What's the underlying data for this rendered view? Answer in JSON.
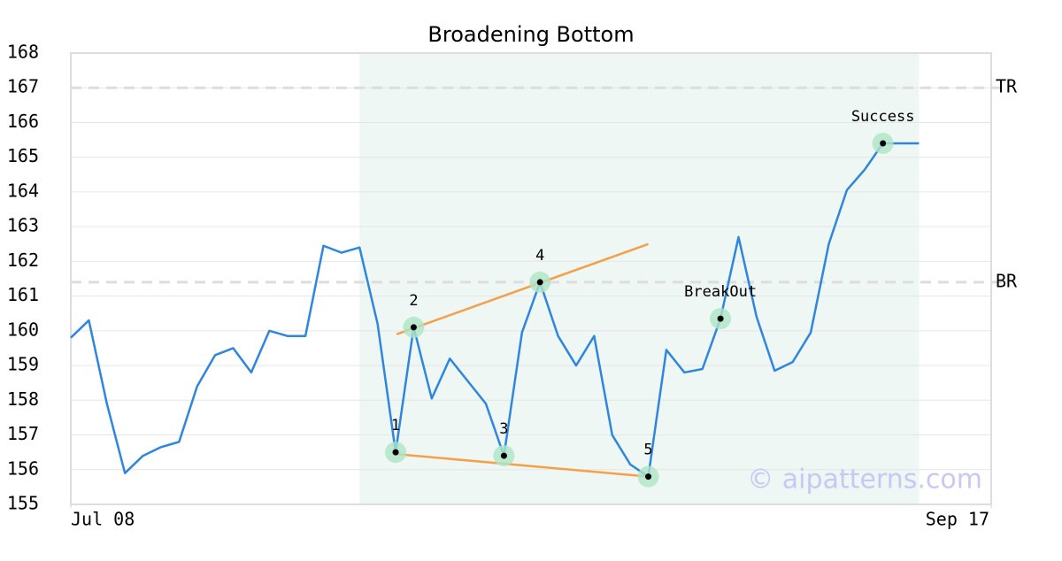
{
  "chart_data": {
    "type": "line",
    "title": "Broadening Bottom",
    "x": [
      0,
      1,
      2,
      3,
      4,
      5,
      6,
      7,
      8,
      9,
      10,
      11,
      12,
      13,
      14,
      15,
      16,
      17,
      18,
      19,
      20,
      21,
      22,
      23,
      24,
      25,
      26,
      27,
      28,
      29,
      30,
      31,
      32,
      33,
      34,
      35,
      36,
      37,
      38,
      39,
      40,
      41,
      42,
      43,
      44,
      45,
      46,
      47
    ],
    "values": [
      159.8,
      160.3,
      157.9,
      155.9,
      156.4,
      156.65,
      156.8,
      158.4,
      159.3,
      159.5,
      158.8,
      160.0,
      159.85,
      159.85,
      162.45,
      162.25,
      162.4,
      160.2,
      156.5,
      160.1,
      158.05,
      159.2,
      158.55,
      157.9,
      156.4,
      159.95,
      161.4,
      159.85,
      159.0,
      159.85,
      157.0,
      156.15,
      155.8,
      159.45,
      158.8,
      158.9,
      160.35,
      162.7,
      160.4,
      158.85,
      159.1,
      159.95,
      162.5,
      164.05,
      164.65,
      165.4,
      165.4,
      165.4
    ],
    "color": "#2e86de",
    "xlim": [
      0,
      51
    ],
    "xticks": [
      {
        "value": 0,
        "label": "Jul 08"
      },
      {
        "value": 51,
        "label": "Sep 17"
      }
    ],
    "ylim": [
      155,
      168
    ],
    "yticks": [
      155,
      156,
      157,
      158,
      159,
      160,
      161,
      162,
      163,
      164,
      165,
      166,
      167,
      168
    ],
    "grid": true,
    "shaded_region": {
      "x": [
        16,
        47
      ],
      "color": "#eef7f3"
    },
    "hlines": [
      {
        "label": "TR",
        "value": 167
      },
      {
        "label": "BR",
        "value": 161.4
      }
    ],
    "trendlines": [
      {
        "x": [
          18.05,
          32
        ],
        "y": [
          159.9,
          162.5
        ],
        "color": "#f4a04a"
      },
      {
        "x": [
          18,
          32
        ],
        "y": [
          156.45,
          155.8
        ],
        "color": "#f4a04a"
      }
    ],
    "points": [
      {
        "label": "1",
        "x": 18,
        "y": 156.5
      },
      {
        "label": "2",
        "x": 19,
        "y": 160.1
      },
      {
        "label": "3",
        "x": 24,
        "y": 156.4
      },
      {
        "label": "4",
        "x": 26,
        "y": 161.4
      },
      {
        "label": "5",
        "x": 32,
        "y": 155.8
      },
      {
        "label": "BreakOut",
        "x": 36,
        "y": 160.35
      },
      {
        "label": "Success",
        "x": 45,
        "y": 165.4
      }
    ],
    "watermark": "© aipatterns.com"
  }
}
